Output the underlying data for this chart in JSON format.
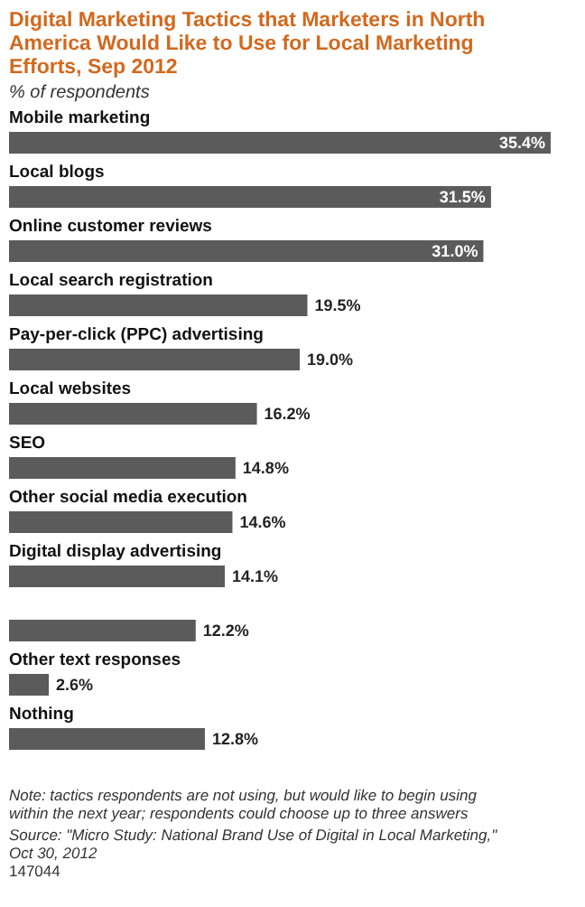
{
  "chart_data": {
    "type": "bar",
    "orientation": "horizontal",
    "title": "Digital Marketing Tactics that Marketers in North America Would Like to Use for Local Marketing Efforts, Sep 2012",
    "subtitle": "% of respondents",
    "categories": [
      "Mobile marketing",
      "Local blogs",
      "Online customer reviews",
      "Local search registration",
      "Pay-per-click (PPC) advertising",
      "Local websites",
      "SEO",
      "Other social media execution",
      "Digital display advertising",
      null,
      "Other text responses",
      "Nothing"
    ],
    "values": [
      35.4,
      31.5,
      31.0,
      19.5,
      19.0,
      16.2,
      14.8,
      14.6,
      14.1,
      12.2,
      2.6,
      12.8
    ],
    "value_labels": [
      "35.4%",
      "31.5%",
      "31.0%",
      "19.5%",
      "19.0%",
      "16.2%",
      "14.8%",
      "14.6%",
      "14.1%",
      "12.2%",
      "2.6%",
      "12.8%"
    ],
    "color": "#5b5b5b",
    "annotations": [
      "Note: tactics respondents are not using, but would like to begin using within the next year; respondents could choose up to three answers",
      "Source: \"Micro Study: National Brand Use of Digital in Local Marketing,\" Oct 30, 2012",
      "147044"
    ]
  }
}
